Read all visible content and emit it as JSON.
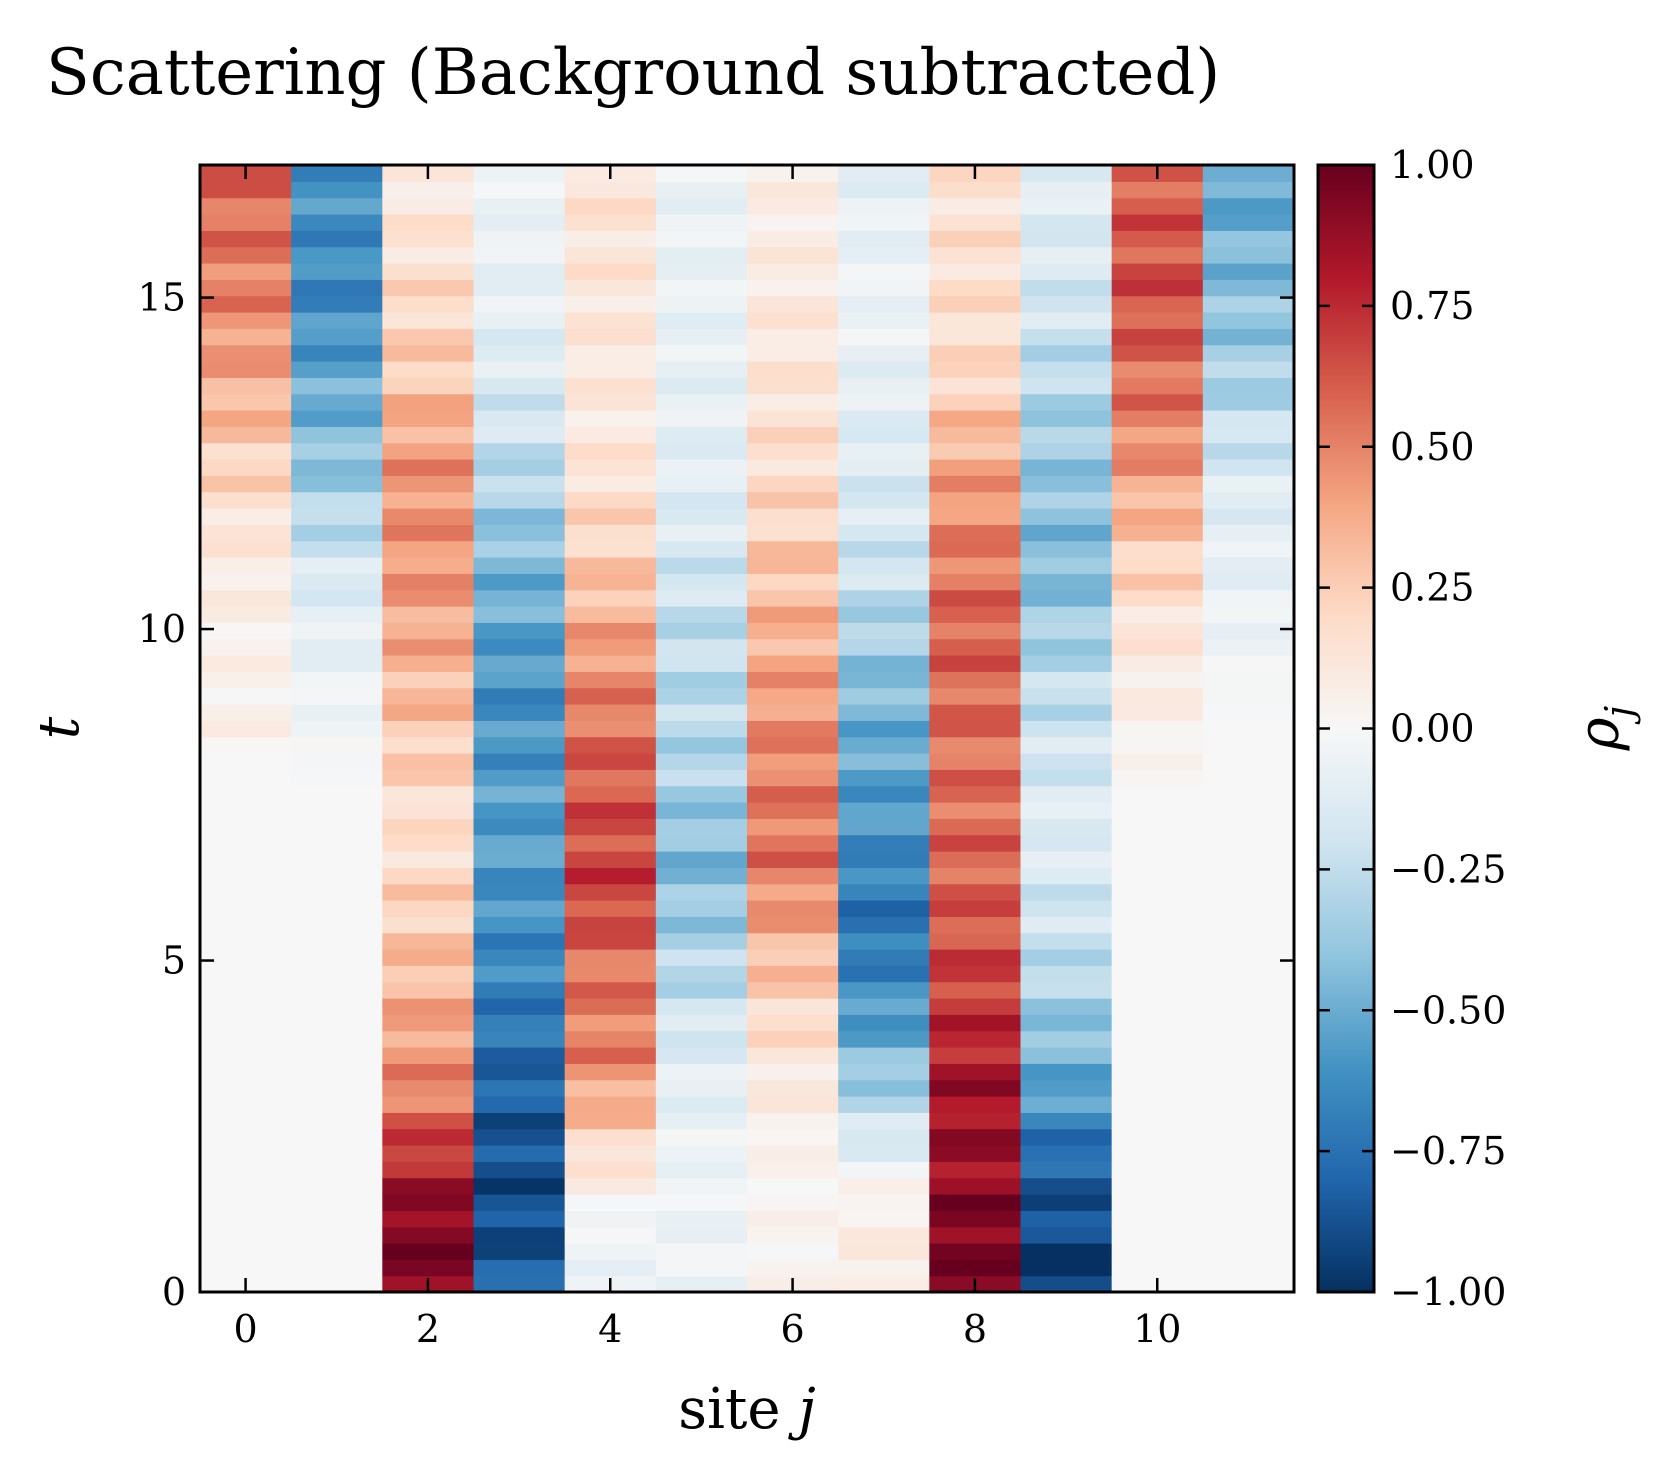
{
  "chart_data": {
    "type": "heatmap",
    "title": "Scattering (Background subtracted)",
    "xlabel": "site j",
    "xlabel_plain": "site ",
    "xlabel_var": "j",
    "ylabel": "t",
    "colorbar_label": "ρ_j",
    "colorbar_symbol": "ρ",
    "colorbar_sub": "j",
    "colormap": "RdBu_r",
    "colormap_stops": [
      "#053061",
      "#2166ac",
      "#4393c3",
      "#92c5de",
      "#d1e5f0",
      "#f7f7f7",
      "#fddbc7",
      "#f4a582",
      "#d6604d",
      "#b2182b",
      "#67001f"
    ],
    "xlim": [
      -0.5,
      11.5
    ],
    "ylim": [
      0,
      17
    ],
    "vlim": [
      -1.0,
      1.0
    ],
    "xticks": [
      0,
      2,
      4,
      6,
      8,
      10
    ],
    "yticks": [
      0,
      5,
      10,
      15
    ],
    "cbar_ticks": [
      1.0,
      0.75,
      0.5,
      0.25,
      0.0,
      -0.25,
      -0.5,
      -0.75,
      -1.0
    ],
    "cbar_tick_labels": [
      "1.00",
      "0.75",
      "0.50",
      "0.25",
      "0.00",
      "−0.25",
      "−0.50",
      "−0.75",
      "−1.00"
    ],
    "time_rows": 69,
    "sites": 12,
    "site_profiles": [
      {
        "site": 0,
        "keys": [
          [
            0,
            0
          ],
          [
            8.0,
            0.0
          ],
          [
            8.5,
            0.05
          ],
          [
            10.0,
            0.05
          ],
          [
            11.5,
            0.12
          ],
          [
            13.5,
            0.35
          ],
          [
            15.0,
            0.5
          ],
          [
            17.0,
            0.6
          ]
        ]
      },
      {
        "site": 1,
        "keys": [
          [
            0,
            0
          ],
          [
            7.5,
            0.0
          ],
          [
            9.0,
            -0.05
          ],
          [
            10.5,
            -0.12
          ],
          [
            12.5,
            -0.4
          ],
          [
            15.0,
            -0.65
          ],
          [
            17.0,
            -0.6
          ]
        ]
      },
      {
        "site": 2,
        "keys": [
          [
            0,
            0.95
          ],
          [
            1.0,
            0.95
          ],
          [
            2.0,
            0.75
          ],
          [
            3.0,
            0.5
          ],
          [
            5.0,
            0.3
          ],
          [
            7.0,
            0.15
          ],
          [
            9.0,
            0.32
          ],
          [
            11.0,
            0.45
          ],
          [
            12.5,
            0.45
          ],
          [
            14.0,
            0.25
          ],
          [
            17.0,
            0.08
          ]
        ]
      },
      {
        "site": 3,
        "keys": [
          [
            0,
            -0.8
          ],
          [
            1.0,
            -0.9
          ],
          [
            2.0,
            -0.88
          ],
          [
            3.0,
            -0.82
          ],
          [
            5.0,
            -0.65
          ],
          [
            7.0,
            -0.55
          ],
          [
            9.0,
            -0.62
          ],
          [
            11.0,
            -0.45
          ],
          [
            13.0,
            -0.2
          ],
          [
            15.0,
            -0.08
          ],
          [
            17.0,
            -0.05
          ]
        ]
      },
      {
        "site": 4,
        "keys": [
          [
            0,
            -0.05
          ],
          [
            1.0,
            -0.05
          ],
          [
            2.0,
            0.15
          ],
          [
            3.5,
            0.5
          ],
          [
            5.0,
            0.55
          ],
          [
            6.0,
            0.7
          ],
          [
            8.0,
            0.6
          ],
          [
            9.5,
            0.45
          ],
          [
            11.0,
            0.25
          ],
          [
            13.0,
            0.1
          ],
          [
            17.0,
            0.15
          ]
        ]
      },
      {
        "site": 5,
        "keys": [
          [
            0,
            -0.05
          ],
          [
            2.0,
            -0.05
          ],
          [
            3.5,
            -0.12
          ],
          [
            5.0,
            -0.3
          ],
          [
            6.5,
            -0.45
          ],
          [
            8.0,
            -0.3
          ],
          [
            10.0,
            -0.25
          ],
          [
            12.0,
            -0.12
          ],
          [
            14.0,
            -0.08
          ],
          [
            17.0,
            -0.06
          ]
        ]
      },
      {
        "site": 6,
        "keys": [
          [
            0,
            0.03
          ],
          [
            2.0,
            0.03
          ],
          [
            3.5,
            0.12
          ],
          [
            5.0,
            0.3
          ],
          [
            6.5,
            0.55
          ],
          [
            8.0,
            0.5
          ],
          [
            10.0,
            0.35
          ],
          [
            12.0,
            0.2
          ],
          [
            14.0,
            0.12
          ],
          [
            17.0,
            0.06
          ]
        ]
      },
      {
        "site": 7,
        "keys": [
          [
            0,
            0.1
          ],
          [
            1.5,
            0.05
          ],
          [
            2.5,
            -0.2
          ],
          [
            4.0,
            -0.55
          ],
          [
            5.5,
            -0.75
          ],
          [
            7.0,
            -0.6
          ],
          [
            9.0,
            -0.45
          ],
          [
            11.0,
            -0.2
          ],
          [
            13.0,
            -0.12
          ],
          [
            15.0,
            -0.05
          ],
          [
            17.0,
            -0.1
          ]
        ]
      },
      {
        "site": 8,
        "keys": [
          [
            0,
            0.95
          ],
          [
            1.0,
            0.95
          ],
          [
            2.0,
            0.85
          ],
          [
            3.0,
            0.85
          ],
          [
            4.5,
            0.7
          ],
          [
            6.0,
            0.6
          ],
          [
            8.0,
            0.55
          ],
          [
            10.0,
            0.6
          ],
          [
            12.0,
            0.45
          ],
          [
            14.0,
            0.18
          ],
          [
            17.0,
            0.15
          ]
        ]
      },
      {
        "site": 9,
        "keys": [
          [
            0,
            -1.0
          ],
          [
            1.0,
            -0.9
          ],
          [
            2.0,
            -0.8
          ],
          [
            3.0,
            -0.55
          ],
          [
            5.0,
            -0.25
          ],
          [
            7.0,
            -0.12
          ],
          [
            9.0,
            -0.25
          ],
          [
            11.0,
            -0.45
          ],
          [
            13.0,
            -0.35
          ],
          [
            15.0,
            -0.18
          ],
          [
            17.0,
            -0.1
          ]
        ]
      },
      {
        "site": 10,
        "keys": [
          [
            0,
            0
          ],
          [
            7.5,
            0.0
          ],
          [
            8.5,
            0.05
          ],
          [
            10.0,
            0.12
          ],
          [
            11.5,
            0.3
          ],
          [
            13.0,
            0.5
          ],
          [
            15.0,
            0.65
          ],
          [
            17.0,
            0.6
          ]
        ]
      },
      {
        "site": 11,
        "keys": [
          [
            0,
            0
          ],
          [
            8.5,
            0.0
          ],
          [
            10.0,
            -0.05
          ],
          [
            12.0,
            -0.12
          ],
          [
            14.0,
            -0.35
          ],
          [
            17.0,
            -0.55
          ]
        ]
      }
    ]
  }
}
